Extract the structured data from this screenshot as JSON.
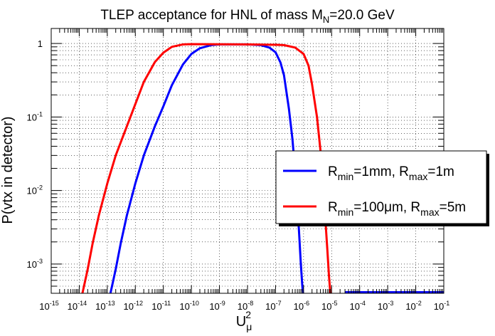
{
  "chart_data": {
    "type": "line",
    "title": "TLEP acceptance for HNL of mass M",
    "title_sub": "N",
    "title_suffix": "=20.0 GeV",
    "xlabel": "U",
    "xlabel_sub": "μ",
    "xlabel_sup": "2",
    "ylabel": "P(vtx in detector)",
    "x_scale": "log",
    "y_scale": "log",
    "xlim": [
      1e-15,
      0.1
    ],
    "ylim": [
      0.0004,
      1.6
    ],
    "grid": true,
    "legend_position": "right",
    "x_ticks": [
      {
        "base": "10",
        "exp": "-15",
        "value": 1e-15
      },
      {
        "base": "10",
        "exp": "-14",
        "value": 1e-14
      },
      {
        "base": "10",
        "exp": "-13",
        "value": 1e-13
      },
      {
        "base": "10",
        "exp": "-12",
        "value": 1e-12
      },
      {
        "base": "10",
        "exp": "-11",
        "value": 1e-11
      },
      {
        "base": "10",
        "exp": "-10",
        "value": 1e-10
      },
      {
        "base": "10",
        "exp": "-9",
        "value": 1e-09
      },
      {
        "base": "10",
        "exp": "-8",
        "value": 1e-08
      },
      {
        "base": "10",
        "exp": "-7",
        "value": 1e-07
      },
      {
        "base": "10",
        "exp": "-6",
        "value": 1e-06
      },
      {
        "base": "10",
        "exp": "-5",
        "value": 1e-05
      },
      {
        "base": "10",
        "exp": "-4",
        "value": 0.0001
      },
      {
        "base": "10",
        "exp": "-3",
        "value": 0.001
      },
      {
        "base": "10",
        "exp": "-2",
        "value": 0.01
      },
      {
        "base": "10",
        "exp": "-1",
        "value": 0.1
      }
    ],
    "y_ticks": [
      {
        "base": "1",
        "exp": "",
        "value": 1
      },
      {
        "base": "10",
        "exp": "-1",
        "value": 0.1
      },
      {
        "base": "10",
        "exp": "-2",
        "value": 0.01
      },
      {
        "base": "10",
        "exp": "-3",
        "value": 0.001
      }
    ],
    "series": [
      {
        "legend_parts": [
          {
            "t": "R",
            "k": "n"
          },
          {
            "t": "min",
            "k": "sub"
          },
          {
            "t": "=1mm, R",
            "k": "n"
          },
          {
            "t": "max",
            "k": "sub"
          },
          {
            "t": "=1m",
            "k": "n"
          }
        ],
        "color": "#0000ff",
        "points": [
          [
            1.3e-13,
            0.0004
          ],
          [
            2e-13,
            0.00085
          ],
          [
            3e-13,
            0.0019
          ],
          [
            5e-13,
            0.0046
          ],
          [
            1e-12,
            0.0125
          ],
          [
            2e-12,
            0.03
          ],
          [
            5e-12,
            0.075
          ],
          [
            1e-11,
            0.14
          ],
          [
            2e-11,
            0.27
          ],
          [
            5e-11,
            0.52
          ],
          [
            1e-10,
            0.72
          ],
          [
            2e-10,
            0.86
          ],
          [
            5e-10,
            0.95
          ],
          [
            1e-09,
            0.97
          ],
          [
            1e-08,
            0.97
          ],
          [
            3e-08,
            0.95
          ],
          [
            6e-08,
            0.88
          ],
          [
            1e-07,
            0.76
          ],
          [
            1.5e-07,
            0.55
          ],
          [
            2e-07,
            0.37
          ],
          [
            3e-07,
            0.13
          ],
          [
            4e-07,
            0.05
          ],
          [
            5e-07,
            0.018
          ],
          [
            6e-07,
            0.0065
          ],
          [
            7e-07,
            0.0025
          ],
          [
            8e-07,
            0.001
          ],
          [
            9e-07,
            0.0005
          ],
          [
            9.5e-07,
            0.0004
          ]
        ],
        "floor_from": 3e-05,
        "floor_to": 0.1
      },
      {
        "legend_parts": [
          {
            "t": "R",
            "k": "n"
          },
          {
            "t": "min",
            "k": "sub"
          },
          {
            "t": "=100μm, R",
            "k": "n"
          },
          {
            "t": "max",
            "k": "sub"
          },
          {
            "t": "=5m",
            "k": "n"
          }
        ],
        "color": "#ff0000",
        "points": [
          [
            1.3e-14,
            0.0004
          ],
          [
            2e-14,
            0.00085
          ],
          [
            3e-14,
            0.0019
          ],
          [
            5e-14,
            0.0046
          ],
          [
            1e-13,
            0.0125
          ],
          [
            2e-13,
            0.03
          ],
          [
            5e-13,
            0.075
          ],
          [
            1e-12,
            0.15
          ],
          [
            2e-12,
            0.3
          ],
          [
            5e-12,
            0.56
          ],
          [
            1e-11,
            0.75
          ],
          [
            2e-11,
            0.9
          ],
          [
            5e-11,
            0.97
          ],
          [
            1e-10,
            0.98
          ],
          [
            1e-08,
            0.97
          ],
          [
            1e-07,
            0.96
          ],
          [
            2e-07,
            0.95
          ],
          [
            5e-07,
            0.88
          ],
          [
            1e-06,
            0.72
          ],
          [
            1.5e-06,
            0.5
          ],
          [
            2e-06,
            0.28
          ],
          [
            3e-06,
            0.1
          ],
          [
            4e-06,
            0.035
          ],
          [
            5e-06,
            0.012
          ],
          [
            6e-06,
            0.004
          ],
          [
            7e-06,
            0.0016
          ],
          [
            8e-06,
            0.0007
          ],
          [
            9e-06,
            0.0004
          ]
        ]
      }
    ]
  }
}
